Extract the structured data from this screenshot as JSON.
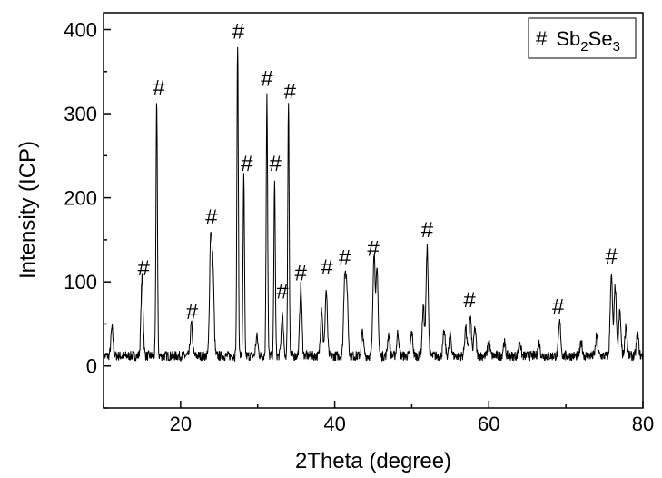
{
  "chart_data": {
    "type": "line",
    "title": "",
    "xlabel": "2Theta (degree)",
    "ylabel": "Intensity (ICP)",
    "xlim": [
      10,
      80
    ],
    "ylim": [
      -50,
      420
    ],
    "xticks": [
      20,
      40,
      60,
      80
    ],
    "yticks": [
      0,
      100,
      200,
      300,
      400
    ],
    "grid": false,
    "legend": {
      "position": "top-right",
      "symbol": "#",
      "text": "Sb",
      "sub1": "2",
      "mid": "Se",
      "sub2": "3"
    },
    "peak_marker": "#",
    "baseline": 12,
    "peaks": [
      {
        "x": 11.1,
        "y": 45
      },
      {
        "x": 15.0,
        "y": 105
      },
      {
        "x": 16.9,
        "y": 318
      },
      {
        "x": 21.4,
        "y": 50
      },
      {
        "x": 23.9,
        "y": 150
      },
      {
        "x": 24.2,
        "y": 110
      },
      {
        "x": 27.4,
        "y": 385
      },
      {
        "x": 28.2,
        "y": 225
      },
      {
        "x": 29.9,
        "y": 35
      },
      {
        "x": 31.2,
        "y": 325
      },
      {
        "x": 32.2,
        "y": 220
      },
      {
        "x": 33.2,
        "y": 60
      },
      {
        "x": 34.0,
        "y": 315
      },
      {
        "x": 35.6,
        "y": 95
      },
      {
        "x": 38.3,
        "y": 70
      },
      {
        "x": 38.9,
        "y": 90
      },
      {
        "x": 41.3,
        "y": 105
      },
      {
        "x": 41.6,
        "y": 85
      },
      {
        "x": 43.6,
        "y": 40
      },
      {
        "x": 45.1,
        "y": 135
      },
      {
        "x": 45.5,
        "y": 110
      },
      {
        "x": 47.0,
        "y": 38
      },
      {
        "x": 48.2,
        "y": 40
      },
      {
        "x": 50.0,
        "y": 40
      },
      {
        "x": 51.5,
        "y": 70
      },
      {
        "x": 52.0,
        "y": 140
      },
      {
        "x": 54.2,
        "y": 40
      },
      {
        "x": 55.0,
        "y": 38
      },
      {
        "x": 57.0,
        "y": 45
      },
      {
        "x": 57.6,
        "y": 58
      },
      {
        "x": 58.2,
        "y": 45
      },
      {
        "x": 60.0,
        "y": 30
      },
      {
        "x": 62.0,
        "y": 28
      },
      {
        "x": 64.0,
        "y": 30
      },
      {
        "x": 66.5,
        "y": 28
      },
      {
        "x": 69.2,
        "y": 52
      },
      {
        "x": 72.0,
        "y": 28
      },
      {
        "x": 74.0,
        "y": 35
      },
      {
        "x": 75.9,
        "y": 110
      },
      {
        "x": 76.4,
        "y": 95
      },
      {
        "x": 77.0,
        "y": 65
      },
      {
        "x": 77.8,
        "y": 48
      },
      {
        "x": 79.3,
        "y": 38
      }
    ],
    "markers": [
      {
        "x": 15.2,
        "y": 108
      },
      {
        "x": 17.2,
        "y": 322
      },
      {
        "x": 21.5,
        "y": 56
      },
      {
        "x": 24.0,
        "y": 168
      },
      {
        "x": 27.5,
        "y": 389
      },
      {
        "x": 28.6,
        "y": 232
      },
      {
        "x": 31.2,
        "y": 333
      },
      {
        "x": 32.3,
        "y": 232
      },
      {
        "x": 33.2,
        "y": 80
      },
      {
        "x": 34.2,
        "y": 318
      },
      {
        "x": 35.6,
        "y": 102
      },
      {
        "x": 39.0,
        "y": 109
      },
      {
        "x": 41.3,
        "y": 120
      },
      {
        "x": 45.0,
        "y": 131
      },
      {
        "x": 52.0,
        "y": 153
      },
      {
        "x": 57.5,
        "y": 70
      },
      {
        "x": 69.0,
        "y": 62
      },
      {
        "x": 75.9,
        "y": 122
      }
    ]
  }
}
